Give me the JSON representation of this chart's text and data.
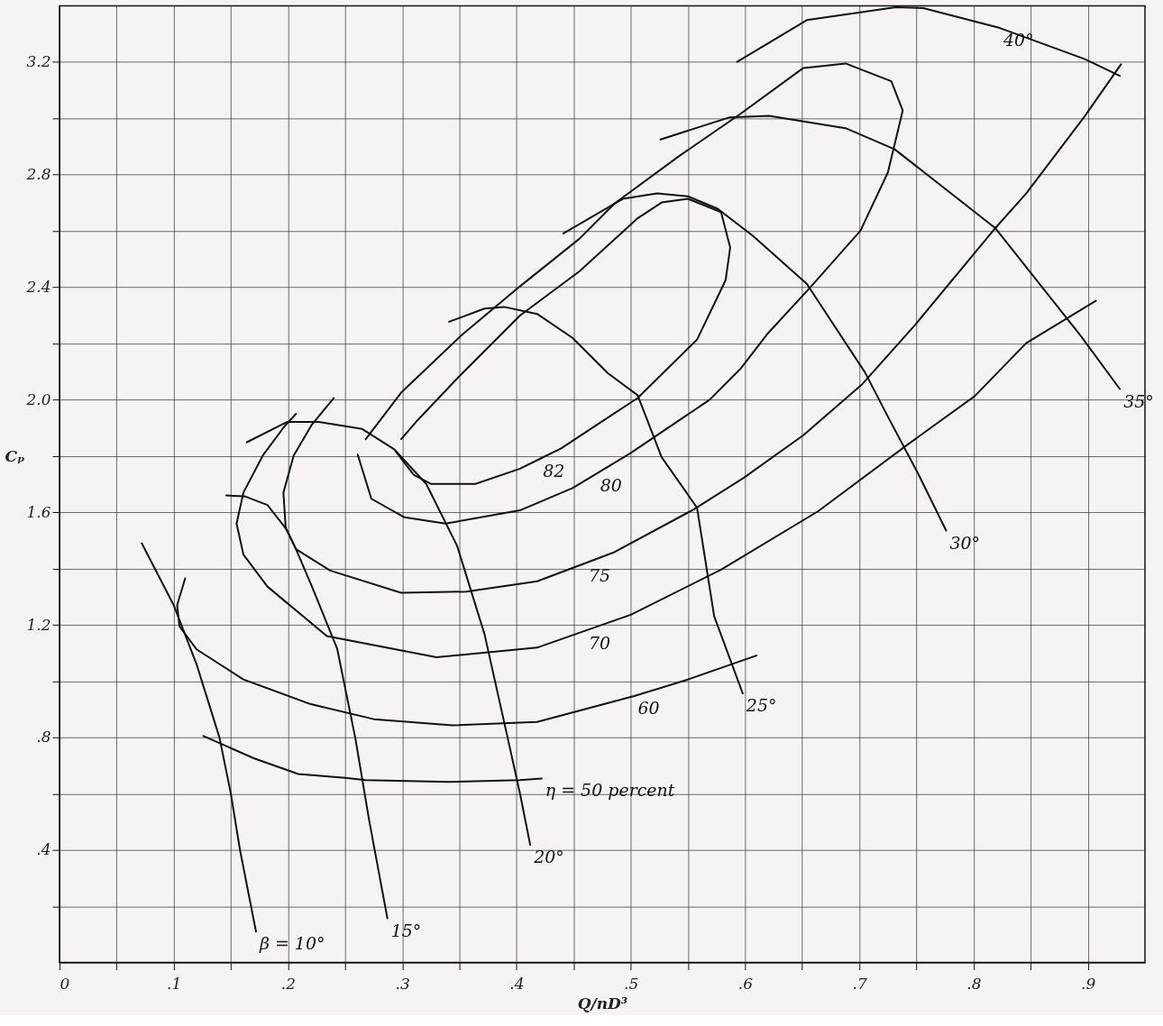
{
  "chart_data": {
    "type": "line",
    "xlabel": "Q/nD³",
    "ylabel": "Cₚ",
    "xlim": [
      0,
      0.95
    ],
    "ylim": [
      0,
      3.4
    ],
    "xticks": [
      {
        "value": 0,
        "label": "0"
      },
      {
        "value": 0.05,
        "label": null
      },
      {
        "value": 0.1,
        "label": ".1"
      },
      {
        "value": 0.15,
        "label": null
      },
      {
        "value": 0.2,
        "label": ".2"
      },
      {
        "value": 0.25,
        "label": null
      },
      {
        "value": 0.3,
        "label": ".3"
      },
      {
        "value": 0.35,
        "label": null
      },
      {
        "value": 0.4,
        "label": ".4"
      },
      {
        "value": 0.45,
        "label": null
      },
      {
        "value": 0.5,
        "label": ".5"
      },
      {
        "value": 0.55,
        "label": null
      },
      {
        "value": 0.6,
        "label": ".6"
      },
      {
        "value": 0.65,
        "label": null
      },
      {
        "value": 0.7,
        "label": ".7"
      },
      {
        "value": 0.75,
        "label": null
      },
      {
        "value": 0.8,
        "label": ".8"
      },
      {
        "value": 0.85,
        "label": null
      },
      {
        "value": 0.9,
        "label": ".9"
      }
    ],
    "yticks": [
      {
        "value": 0.2,
        "label": null
      },
      {
        "value": 0.4,
        "label": ".4"
      },
      {
        "value": 0.6,
        "label": null
      },
      {
        "value": 0.8,
        "label": ".8"
      },
      {
        "value": 1.0,
        "label": null
      },
      {
        "value": 1.2,
        "label": "1.2"
      },
      {
        "value": 1.4,
        "label": null
      },
      {
        "value": 1.6,
        "label": "1.6"
      },
      {
        "value": 1.8,
        "label": null
      },
      {
        "value": 2.0,
        "label": "2.0"
      },
      {
        "value": 2.2,
        "label": null
      },
      {
        "value": 2.4,
        "label": "2.4"
      },
      {
        "value": 2.6,
        "label": null
      },
      {
        "value": 2.8,
        "label": "2.8"
      },
      {
        "value": 3.0,
        "label": null
      },
      {
        "value": 3.2,
        "label": "3.2"
      }
    ],
    "grid": true,
    "line_style": "solid",
    "series": [
      {
        "color": "#111111",
        "x": [
          0.072,
          0.1,
          0.12,
          0.14,
          0.15,
          0.158,
          0.172
        ],
        "values": [
          1.49,
          1.27,
          1.06,
          0.8,
          0.6,
          0.4,
          0.11
        ]
      },
      {
        "color": "#111111",
        "x": [
          0.146,
          0.162,
          0.182,
          0.199,
          0.207,
          0.221,
          0.243,
          0.259,
          0.271,
          0.287
        ],
        "values": [
          1.66,
          1.657,
          1.626,
          1.538,
          1.469,
          1.336,
          1.116,
          0.796,
          0.506,
          0.157
        ]
      },
      {
        "color": "#111111",
        "x": [
          0.164,
          0.199,
          0.227,
          0.265,
          0.293,
          0.321,
          0.348,
          0.372,
          0.391,
          0.403,
          0.412
        ],
        "values": [
          1.849,
          1.921,
          1.921,
          1.896,
          1.824,
          1.701,
          1.481,
          1.167,
          0.821,
          0.601,
          0.418
        ]
      },
      {
        "color": "#111111",
        "x": [
          0.341,
          0.372,
          0.389,
          0.418,
          0.449,
          0.48,
          0.506,
          0.527,
          0.558,
          0.573,
          0.598
        ],
        "values": [
          2.277,
          2.324,
          2.33,
          2.305,
          2.22,
          2.094,
          2.016,
          1.796,
          1.616,
          1.23,
          0.956
        ]
      },
      {
        "color": "#111111",
        "x": [
          0.441,
          0.493,
          0.523,
          0.55,
          0.576,
          0.607,
          0.654,
          0.705,
          0.725,
          0.752,
          0.776
        ],
        "values": [
          2.591,
          2.714,
          2.733,
          2.723,
          2.679,
          2.582,
          2.412,
          2.097,
          1.94,
          1.733,
          1.535
        ]
      },
      {
        "color": "#111111",
        "x": [
          0.526,
          0.586,
          0.621,
          0.688,
          0.731,
          0.819,
          0.894,
          0.928
        ],
        "values": [
          2.925,
          3.003,
          3.009,
          2.965,
          2.89,
          2.61,
          2.226,
          2.038
        ]
      },
      {
        "color": "#111111",
        "x": [
          0.593,
          0.654,
          0.732,
          0.756,
          0.823,
          0.897,
          0.928
        ],
        "values": [
          3.201,
          3.349,
          3.395,
          3.392,
          3.321,
          3.211,
          3.151
        ]
      },
      {
        "color": "#111111",
        "x": [
          0.126,
          0.17,
          0.209,
          0.25,
          0.268,
          0.341,
          0.403,
          0.422
        ],
        "values": [
          0.805,
          0.726,
          0.67,
          0.656,
          0.648,
          0.642,
          0.648,
          0.654
        ]
      },
      {
        "color": "#111111",
        "x": [
          0.11,
          0.103,
          0.105,
          0.12,
          0.161,
          0.22,
          0.275,
          0.344,
          0.418,
          0.503,
          0.548,
          0.61
        ],
        "values": [
          1.365,
          1.27,
          1.195,
          1.113,
          1.006,
          0.918,
          0.865,
          0.843,
          0.855,
          0.947,
          1.003,
          1.091
        ]
      },
      {
        "color": "#111111",
        "x": [
          0.207,
          0.197,
          0.178,
          0.161,
          0.155,
          0.161,
          0.182,
          0.234,
          0.33,
          0.418,
          0.46,
          0.5,
          0.579,
          0.664,
          0.742,
          0.801,
          0.846,
          0.907
        ],
        "values": [
          1.95,
          1.906,
          1.802,
          1.67,
          1.56,
          1.45,
          1.336,
          1.16,
          1.085,
          1.119,
          1.179,
          1.236,
          1.396,
          1.604,
          1.84,
          2.013,
          2.201,
          2.352
        ]
      },
      {
        "color": "#111111",
        "x": [
          0.24,
          0.221,
          0.205,
          0.196,
          0.198,
          0.207,
          0.237,
          0.299,
          0.356,
          0.418,
          0.46,
          0.486,
          0.555,
          0.599,
          0.651,
          0.702,
          0.749,
          0.819,
          0.846,
          0.897,
          0.929
        ],
        "values": [
          2.006,
          1.912,
          1.802,
          1.67,
          1.544,
          1.469,
          1.393,
          1.314,
          1.318,
          1.355,
          1.419,
          1.459,
          1.61,
          1.723,
          1.874,
          2.053,
          2.267,
          2.61,
          2.733,
          3.006,
          3.192
        ]
      },
      {
        "color": "#111111",
        "x": [
          0.261,
          0.273,
          0.302,
          0.338,
          0.403,
          0.449,
          0.47,
          0.5,
          0.569,
          0.596,
          0.62,
          0.657,
          0.701,
          0.725,
          0.738,
          0.728,
          0.688,
          0.651,
          0.596,
          0.542,
          0.486,
          0.455,
          0.403,
          0.351,
          0.299,
          0.268
        ],
        "values": [
          1.805,
          1.648,
          1.582,
          1.56,
          1.607,
          1.686,
          1.737,
          1.811,
          2.0,
          2.11,
          2.236,
          2.399,
          2.601,
          2.808,
          3.028,
          3.132,
          3.195,
          3.179,
          3.016,
          2.865,
          2.698,
          2.572,
          2.403,
          2.226,
          2.025,
          1.86
        ]
      },
      {
        "color": "#111111",
        "x": [
          0.294,
          0.31,
          0.325,
          0.364,
          0.403,
          0.42,
          0.439,
          0.48,
          0.506,
          0.558,
          0.583,
          0.587,
          0.579,
          0.55,
          0.527,
          0.506,
          0.455,
          0.403,
          0.351,
          0.312,
          0.299
        ],
        "values": [
          1.818,
          1.733,
          1.701,
          1.701,
          1.755,
          1.789,
          1.827,
          1.937,
          2.006,
          2.214,
          2.425,
          2.541,
          2.667,
          2.714,
          2.701,
          2.645,
          2.456,
          2.299,
          2.088,
          1.921,
          1.86
        ]
      }
    ],
    "annotations": [
      {
        "text": "β = 10°",
        "x": 0.172,
        "y": 0.11
      },
      {
        "text": "15°",
        "x": 0.287,
        "y": 0.157
      },
      {
        "text": "20°",
        "x": 0.412,
        "y": 0.418
      },
      {
        "text": "25°",
        "x": 0.598,
        "y": 0.956
      },
      {
        "text": "30°",
        "x": 0.776,
        "y": 1.535
      },
      {
        "text": "35°",
        "x": 0.928,
        "y": 2.038
      },
      {
        "text": "40°",
        "x": 0.823,
        "y": 3.321
      },
      {
        "text": "η = 50 percent",
        "x": 0.422,
        "y": 0.654
      },
      {
        "text": "60",
        "x": 0.503,
        "y": 0.947
      },
      {
        "text": "70",
        "x": 0.46,
        "y": 1.179
      },
      {
        "text": "75",
        "x": 0.46,
        "y": 1.419
      },
      {
        "text": "80",
        "x": 0.47,
        "y": 1.737
      },
      {
        "text": "82",
        "x": 0.42,
        "y": 1.789
      }
    ]
  }
}
